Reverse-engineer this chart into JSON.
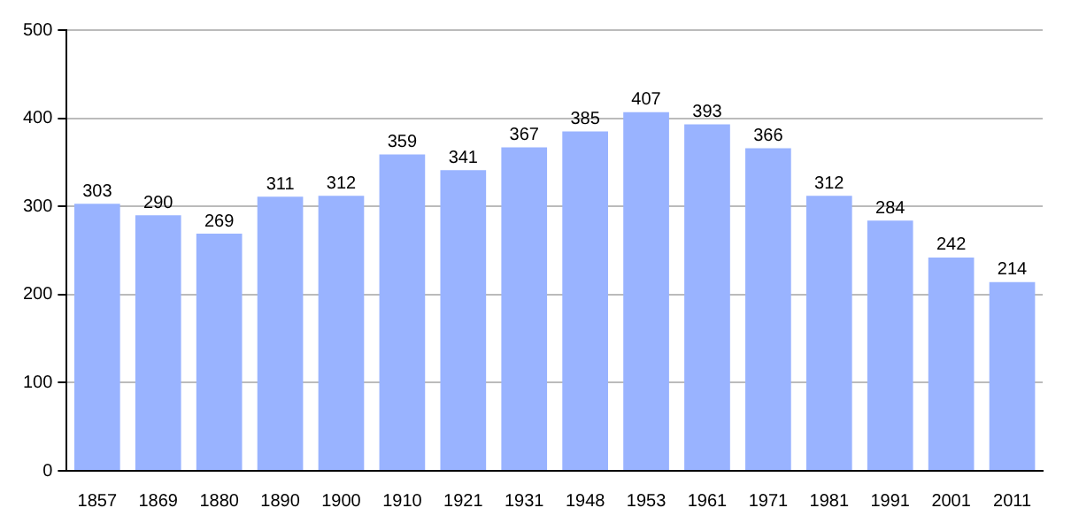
{
  "chart_data": {
    "type": "bar",
    "categories": [
      "1857",
      "1869",
      "1880",
      "1890",
      "1900",
      "1910",
      "1921",
      "1931",
      "1948",
      "1953",
      "1961",
      "1971",
      "1981",
      "1991",
      "2001",
      "2011"
    ],
    "values": [
      303,
      290,
      269,
      311,
      312,
      359,
      341,
      367,
      385,
      407,
      393,
      366,
      312,
      284,
      242,
      214
    ],
    "color": "#99b3ff",
    "ylim": [
      0,
      500
    ],
    "yticks": [
      0,
      100,
      200,
      300,
      400,
      500
    ],
    "grid": "y",
    "data_labels": true
  }
}
